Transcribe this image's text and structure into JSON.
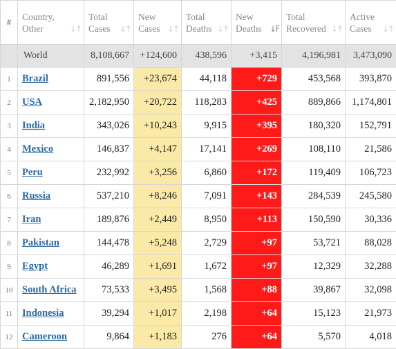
{
  "headers": {
    "rank": "#",
    "country": [
      "Country,",
      "Other"
    ],
    "total_cases": [
      "Total",
      "Cases"
    ],
    "new_cases": [
      "New",
      "Cases"
    ],
    "total_deaths": [
      "Total",
      "Deaths"
    ],
    "new_deaths": [
      "New",
      "Deaths"
    ],
    "total_recovered": [
      "Total",
      "Recovered"
    ],
    "active_cases": [
      "Active",
      "Cases"
    ],
    "sort_icon": "sort-arrows-icon",
    "active_sort_column": "new_deaths"
  },
  "world": {
    "name": "World",
    "total_cases": "8,108,667",
    "new_cases": "+124,600",
    "total_deaths": "438,596",
    "new_deaths": "+3,415",
    "total_recovered": "4,196,981",
    "active_cases": "3,473,090"
  },
  "rows": [
    {
      "rank": "1",
      "country": "Brazil",
      "total_cases": "891,556",
      "new_cases": "+23,674",
      "total_deaths": "44,118",
      "new_deaths": "+729",
      "total_recovered": "453,568",
      "active_cases": "393,870"
    },
    {
      "rank": "2",
      "country": "USA",
      "total_cases": "2,182,950",
      "new_cases": "+20,722",
      "total_deaths": "118,283",
      "new_deaths": "+425",
      "total_recovered": "889,866",
      "active_cases": "1,174,801"
    },
    {
      "rank": "3",
      "country": "India",
      "total_cases": "343,026",
      "new_cases": "+10,243",
      "total_deaths": "9,915",
      "new_deaths": "+395",
      "total_recovered": "180,320",
      "active_cases": "152,791"
    },
    {
      "rank": "4",
      "country": "Mexico",
      "total_cases": "146,837",
      "new_cases": "+4,147",
      "total_deaths": "17,141",
      "new_deaths": "+269",
      "total_recovered": "108,110",
      "active_cases": "21,586"
    },
    {
      "rank": "5",
      "country": "Peru",
      "total_cases": "232,992",
      "new_cases": "+3,256",
      "total_deaths": "6,860",
      "new_deaths": "+172",
      "total_recovered": "119,409",
      "active_cases": "106,723"
    },
    {
      "rank": "6",
      "country": "Russia",
      "total_cases": "537,210",
      "new_cases": "+8,246",
      "total_deaths": "7,091",
      "new_deaths": "+143",
      "total_recovered": "284,539",
      "active_cases": "245,580"
    },
    {
      "rank": "7",
      "country": "Iran",
      "total_cases": "189,876",
      "new_cases": "+2,449",
      "total_deaths": "8,950",
      "new_deaths": "+113",
      "total_recovered": "150,590",
      "active_cases": "30,336"
    },
    {
      "rank": "8",
      "country": "Pakistan",
      "total_cases": "144,478",
      "new_cases": "+5,248",
      "total_deaths": "2,729",
      "new_deaths": "+97",
      "total_recovered": "53,721",
      "active_cases": "88,028"
    },
    {
      "rank": "9",
      "country": "Egypt",
      "total_cases": "46,289",
      "new_cases": "+1,691",
      "total_deaths": "1,672",
      "new_deaths": "+97",
      "total_recovered": "12,329",
      "active_cases": "32,288"
    },
    {
      "rank": "10",
      "country": "South Africa",
      "total_cases": "73,533",
      "new_cases": "+3,495",
      "total_deaths": "1,568",
      "new_deaths": "+88",
      "total_recovered": "39,867",
      "active_cases": "32,098"
    },
    {
      "rank": "11",
      "country": "Indonesia",
      "total_cases": "39,294",
      "new_cases": "+1,017",
      "total_deaths": "2,198",
      "new_deaths": "+64",
      "total_recovered": "15,123",
      "active_cases": "21,973"
    },
    {
      "rank": "12",
      "country": "Cameroon",
      "total_cases": "9,864",
      "new_cases": "+1,183",
      "total_deaths": "276",
      "new_deaths": "+64",
      "total_recovered": "5,570",
      "active_cases": "4,018"
    }
  ],
  "colors": {
    "new_cases_bg": "#fbeaa7",
    "new_deaths_bg": "#ff1a1a",
    "world_row_bg": "#e3e3e3",
    "country_link": "#2a6aa8"
  }
}
